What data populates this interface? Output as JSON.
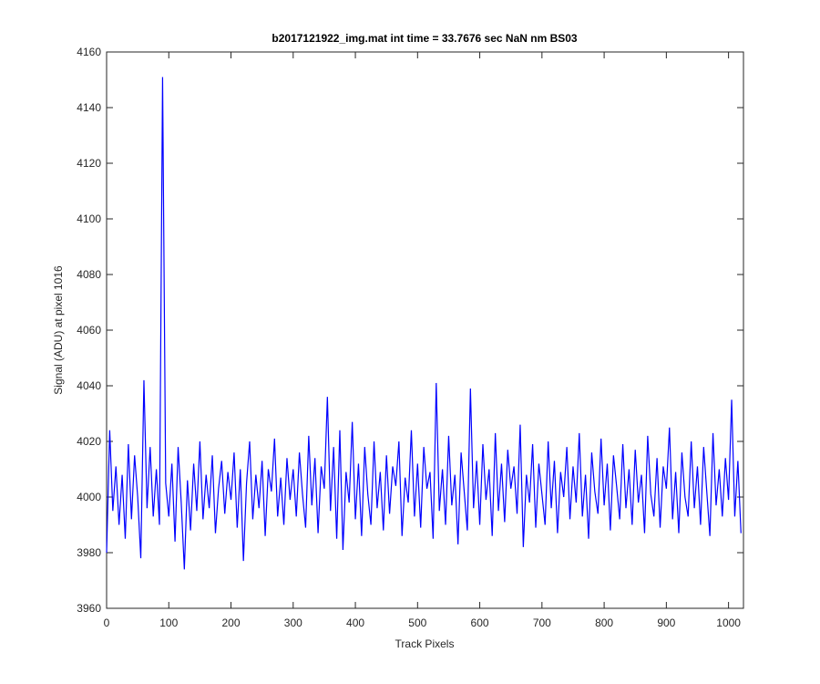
{
  "chart_data": {
    "type": "line",
    "title": "b2017121922_img.mat int time = 33.7676 sec  NaN nm BS03",
    "x_label": "Track Pixels",
    "y_label": "Signal (ADU) at pixel 1016",
    "xlim": [
      0,
      1024
    ],
    "ylim": [
      3960,
      4160
    ],
    "xticks": [
      0,
      100,
      200,
      300,
      400,
      500,
      600,
      700,
      800,
      900,
      1000
    ],
    "yticks": [
      3960,
      3980,
      4000,
      4020,
      4040,
      4060,
      4080,
      4100,
      4120,
      4140,
      4160
    ],
    "x": [
      0,
      5,
      10,
      15,
      20,
      25,
      30,
      35,
      40,
      45,
      50,
      55,
      60,
      65,
      70,
      75,
      80,
      85,
      90,
      95,
      100,
      105,
      110,
      115,
      120,
      125,
      130,
      135,
      140,
      145,
      150,
      155,
      160,
      165,
      170,
      175,
      180,
      185,
      190,
      195,
      200,
      205,
      210,
      215,
      220,
      225,
      230,
      235,
      240,
      245,
      250,
      255,
      260,
      265,
      270,
      275,
      280,
      285,
      290,
      295,
      300,
      305,
      310,
      315,
      320,
      325,
      330,
      335,
      340,
      345,
      350,
      355,
      360,
      365,
      370,
      375,
      380,
      385,
      390,
      395,
      400,
      405,
      410,
      415,
      420,
      425,
      430,
      435,
      440,
      445,
      450,
      455,
      460,
      465,
      470,
      475,
      480,
      485,
      490,
      495,
      500,
      505,
      510,
      515,
      520,
      525,
      530,
      535,
      540,
      545,
      550,
      555,
      560,
      565,
      570,
      575,
      580,
      585,
      590,
      595,
      600,
      605,
      610,
      615,
      620,
      625,
      630,
      635,
      640,
      645,
      650,
      655,
      660,
      665,
      670,
      675,
      680,
      685,
      690,
      695,
      700,
      705,
      710,
      715,
      720,
      725,
      730,
      735,
      740,
      745,
      750,
      755,
      760,
      765,
      770,
      775,
      780,
      785,
      790,
      795,
      800,
      805,
      810,
      815,
      820,
      825,
      830,
      835,
      840,
      845,
      850,
      855,
      860,
      865,
      870,
      875,
      880,
      885,
      890,
      895,
      900,
      905,
      910,
      915,
      920,
      925,
      930,
      935,
      940,
      945,
      950,
      955,
      960,
      965,
      970,
      975,
      980,
      985,
      990,
      995,
      1000,
      1005,
      1010,
      1015,
      1020
    ],
    "series": [
      {
        "name": "signal",
        "color": "#0000ff",
        "values": [
          3980,
          4024,
          3995,
          4011,
          3990,
          4008,
          3985,
          4019,
          3992,
          4015,
          4000,
          3978,
          4042,
          3996,
          4018,
          3993,
          4010,
          3990,
          4151,
          4005,
          3993,
          4012,
          3984,
          4018,
          3998,
          3974,
          4006,
          3988,
          4012,
          3995,
          4020,
          3992,
          4008,
          3996,
          4015,
          3987,
          4003,
          4013,
          3994,
          4009,
          3999,
          4016,
          3989,
          4010,
          3977,
          4005,
          4020,
          3992,
          4008,
          3996,
          4013,
          3986,
          4010,
          4002,
          4021,
          3993,
          4007,
          3990,
          4014,
          3999,
          4010,
          3993,
          4016,
          4001,
          3989,
          4022,
          3997,
          4014,
          3987,
          4011,
          4003,
          4036,
          3995,
          4018,
          3985,
          4024,
          3981,
          4009,
          3998,
          4027,
          3992,
          4012,
          3986,
          4018,
          4001,
          3990,
          4020,
          3996,
          4009,
          3988,
          4015,
          3994,
          4011,
          4004,
          4020,
          3986,
          4007,
          3998,
          4024,
          3993,
          4012,
          3989,
          4018,
          4003,
          4009,
          3985,
          4041,
          3995,
          4010,
          3990,
          4022,
          3997,
          4008,
          3983,
          4016,
          4002,
          3988,
          4039,
          3996,
          4013,
          3990,
          4019,
          3999,
          4010,
          3986,
          4023,
          3995,
          4012,
          3991,
          4017,
          4003,
          4011,
          3994,
          4026,
          3982,
          4008,
          3998,
          4019,
          3989,
          4012,
          4001,
          3990,
          4020,
          3996,
          4013,
          3987,
          4009,
          4000,
          4018,
          3992,
          4011,
          3998,
          4023,
          3993,
          4008,
          3985,
          4016,
          4002,
          3994,
          4021,
          3997,
          4012,
          3988,
          4015,
          4004,
          3992,
          4019,
          3996,
          4010,
          3990,
          4017,
          3998,
          4008,
          3987,
          4022,
          4001,
          3993,
          4014,
          3989,
          4011,
          4003,
          4025,
          3992,
          4009,
          3987,
          4016,
          4000,
          3993,
          4020,
          3996,
          4011,
          3990,
          4018,
          4002,
          3986,
          4023,
          3997,
          4010,
          3993,
          4014,
          3999,
          4035,
          3993,
          4013,
          3987
        ]
      }
    ]
  }
}
